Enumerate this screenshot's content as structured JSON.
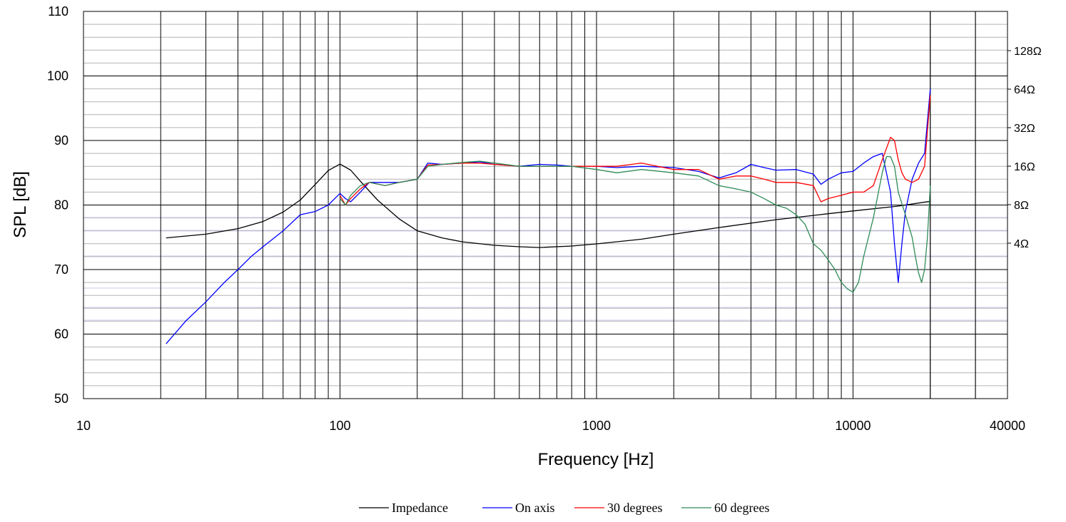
{
  "chart_data": {
    "type": "line",
    "title": "",
    "xlabel": "Frequency [Hz]",
    "ylabel": "SPL [dB]",
    "x_scale": "log",
    "xlim": [
      10,
      40000
    ],
    "ylim": [
      50,
      110
    ],
    "x_tick_labels": [
      "10",
      "100",
      "1000",
      "10000",
      "40000"
    ],
    "x_ticks": [
      10,
      100,
      1000,
      10000,
      40000
    ],
    "y_ticks": [
      50,
      60,
      70,
      80,
      90,
      100,
      110
    ],
    "y_tick_labels": [
      "50",
      "60",
      "70",
      "80",
      "90",
      "100",
      "110"
    ],
    "y2_scale": "log",
    "y2_ticks": [
      4,
      8,
      16,
      32,
      64,
      128
    ],
    "y2_tick_labels": [
      "4Ω",
      "8Ω",
      "16Ω",
      "32Ω",
      "64Ω",
      "128Ω"
    ],
    "grid": true,
    "legend_position": "bottom",
    "colors": {
      "Impedance": "#000000",
      "On axis": "#0000ff",
      "30 degrees": "#ff0000",
      "60 degrees": "#2e8b57"
    },
    "series": [
      {
        "name": "Impedance",
        "axis": "right",
        "x": [
          21,
          30,
          40,
          50,
          60,
          70,
          80,
          90,
          100,
          110,
          120,
          140,
          170,
          200,
          250,
          300,
          400,
          500,
          600,
          800,
          1000,
          1500,
          2000,
          3000,
          5000,
          8000,
          10000,
          15000,
          20000
        ],
        "y": [
          4.4,
          4.7,
          5.2,
          5.9,
          7.0,
          8.7,
          11.5,
          14.8,
          16.6,
          14.9,
          12.2,
          8.7,
          6.2,
          5.0,
          4.4,
          4.1,
          3.85,
          3.75,
          3.7,
          3.8,
          3.95,
          4.3,
          4.7,
          5.3,
          6.1,
          6.8,
          7.15,
          7.8,
          8.5
        ]
      },
      {
        "name": "On axis",
        "axis": "left",
        "x": [
          21,
          25,
          30,
          35,
          40,
          45,
          50,
          60,
          70,
          80,
          90,
          100,
          105,
          110,
          120,
          130,
          150,
          170,
          200,
          220,
          250,
          300,
          350,
          400,
          500,
          600,
          700,
          800,
          1000,
          1200,
          1500,
          2000,
          2500,
          3000,
          3500,
          4000,
          4500,
          5000,
          6000,
          7000,
          7500,
          8000,
          9000,
          10000,
          11000,
          12000,
          13000,
          14000,
          14500,
          15000,
          15500,
          16000,
          17000,
          18000,
          19000,
          20000
        ],
        "y": [
          58.5,
          62.0,
          65.0,
          67.8,
          70.0,
          72.0,
          73.5,
          76.0,
          78.5,
          79.0,
          80.0,
          81.8,
          81.0,
          80.5,
          82.0,
          83.5,
          83.5,
          83.5,
          84.0,
          86.5,
          86.3,
          86.5,
          86.7,
          86.3,
          86.0,
          86.3,
          86.2,
          86.0,
          86.0,
          85.8,
          86.0,
          85.8,
          85.2,
          84.2,
          85.0,
          86.3,
          85.8,
          85.4,
          85.5,
          84.8,
          83.2,
          84.0,
          85.0,
          85.2,
          86.5,
          87.5,
          88.0,
          82.0,
          74.0,
          68.0,
          74.0,
          79.0,
          84.0,
          86.5,
          88.0,
          98.0
        ]
      },
      {
        "name": "30 degrees",
        "axis": "left",
        "x": [
          100,
          105,
          110,
          120,
          130,
          150,
          170,
          200,
          220,
          250,
          300,
          350,
          400,
          500,
          600,
          700,
          800,
          1000,
          1200,
          1500,
          2000,
          2500,
          3000,
          3500,
          4000,
          4500,
          5000,
          6000,
          7000,
          7500,
          8000,
          9000,
          10000,
          11000,
          12000,
          13000,
          14000,
          14500,
          15000,
          15500,
          16000,
          17000,
          18000,
          19000,
          20000
        ],
        "y": [
          81.5,
          80.0,
          81.0,
          82.5,
          83.5,
          83.0,
          83.5,
          84.0,
          86.2,
          86.3,
          86.5,
          86.5,
          86.3,
          86.0,
          86.0,
          86.0,
          86.0,
          86.0,
          86.0,
          86.5,
          85.5,
          85.5,
          84.0,
          84.5,
          84.5,
          84.0,
          83.5,
          83.5,
          83.0,
          80.5,
          81.0,
          81.5,
          82.0,
          82.0,
          83.0,
          87.0,
          90.5,
          90.0,
          87.0,
          85.0,
          84.0,
          83.5,
          84.0,
          86.0,
          97.0
        ]
      },
      {
        "name": "60 degrees",
        "axis": "left",
        "x": [
          100,
          105,
          110,
          120,
          130,
          150,
          170,
          200,
          220,
          250,
          300,
          350,
          400,
          500,
          600,
          700,
          800,
          1000,
          1200,
          1500,
          2000,
          2500,
          3000,
          3500,
          4000,
          4500,
          5000,
          5500,
          6000,
          6500,
          7000,
          7500,
          8000,
          8500,
          9000,
          9500,
          10000,
          10500,
          11000,
          12000,
          13000,
          13500,
          14000,
          14500,
          15000,
          16000,
          17000,
          17500,
          18000,
          18500,
          19000,
          19500,
          20000
        ],
        "y": [
          81.0,
          80.0,
          81.5,
          83.0,
          83.5,
          83.0,
          83.5,
          84.0,
          86.0,
          86.3,
          86.6,
          86.8,
          86.5,
          86.0,
          86.0,
          86.0,
          86.0,
          85.5,
          85.0,
          85.5,
          85.0,
          84.5,
          83.0,
          82.5,
          82.0,
          81.0,
          80.0,
          79.5,
          78.5,
          77.0,
          74.0,
          73.0,
          71.5,
          70.0,
          68.0,
          67.0,
          66.5,
          68.0,
          72.0,
          78.0,
          85.0,
          87.5,
          87.5,
          86.0,
          82.0,
          78.5,
          75.0,
          72.0,
          69.5,
          68.0,
          70.0,
          75.0,
          83.0
        ]
      }
    ]
  }
}
